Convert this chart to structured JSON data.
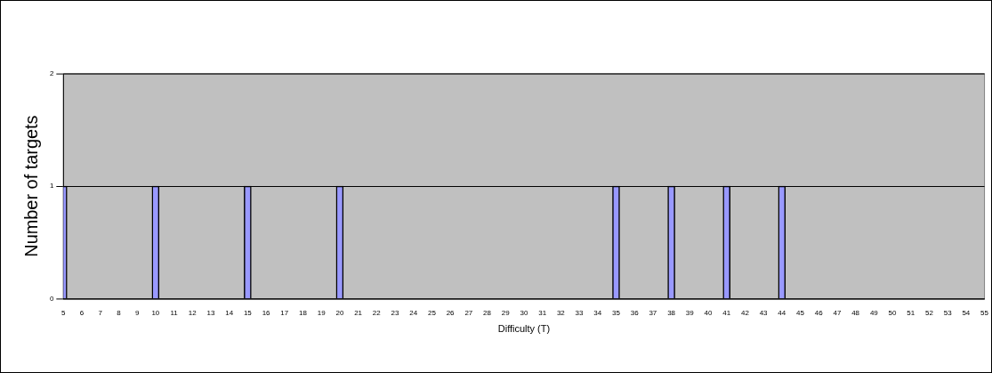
{
  "chart_data": {
    "type": "bar",
    "xlabel": "Difficulty (T)",
    "ylabel": "Number of targets",
    "x": [
      5,
      10,
      15,
      20,
      35,
      38,
      41,
      44
    ],
    "values": [
      1,
      1,
      1,
      1,
      1,
      1,
      1,
      1
    ],
    "color": "#9999ff",
    "xlim": [
      5,
      55
    ],
    "xticks": [
      5,
      6,
      7,
      8,
      9,
      10,
      11,
      12,
      13,
      14,
      15,
      16,
      17,
      18,
      19,
      20,
      21,
      22,
      23,
      24,
      25,
      26,
      27,
      28,
      29,
      30,
      31,
      32,
      33,
      34,
      35,
      36,
      37,
      38,
      39,
      40,
      41,
      42,
      43,
      44,
      45,
      46,
      47,
      48,
      49,
      50,
      51,
      52,
      53,
      54,
      55
    ],
    "ylim": [
      0,
      2
    ],
    "yticks": [
      0,
      1,
      2
    ],
    "grid": "y",
    "legend": false
  }
}
